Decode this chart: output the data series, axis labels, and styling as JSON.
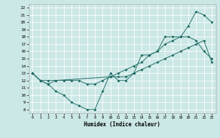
{
  "title": "",
  "xlabel": "Humidex (Indice chaleur)",
  "bg_color": "#cce8e6",
  "line_color": "#1e6b65",
  "grid_color": "#ffffff",
  "xlim": [
    -0.5,
    23.5
  ],
  "ylim": [
    7.5,
    22.5
  ],
  "xticks": [
    0,
    1,
    2,
    3,
    4,
    5,
    6,
    7,
    8,
    9,
    10,
    11,
    12,
    13,
    14,
    15,
    16,
    17,
    18,
    19,
    20,
    21,
    22,
    23
  ],
  "yticks": [
    8,
    9,
    10,
    11,
    12,
    13,
    14,
    15,
    16,
    17,
    18,
    19,
    20,
    21,
    22
  ],
  "line1_x": [
    0,
    1,
    2,
    3,
    4,
    5,
    6,
    7,
    8,
    9,
    10,
    11,
    12,
    13,
    14,
    15,
    16,
    17,
    18,
    19,
    20,
    21,
    22,
    23
  ],
  "line1_y": [
    13,
    12,
    11.5,
    10.5,
    10,
    9,
    8.5,
    8,
    8,
    10.5,
    13,
    12,
    12,
    13,
    15.5,
    15.5,
    16,
    18,
    18,
    18,
    18,
    17.5,
    16,
    15
  ],
  "line2_x": [
    0,
    1,
    2,
    3,
    10,
    11,
    12,
    13,
    14,
    15,
    16,
    17,
    18,
    19,
    20,
    21,
    22,
    23
  ],
  "line2_y": [
    13,
    12,
    12,
    12,
    12.5,
    13,
    13.5,
    14,
    14.5,
    15.5,
    16,
    17,
    17.5,
    18,
    19.5,
    21.5,
    21,
    20
  ],
  "line3_x": [
    0,
    1,
    2,
    3,
    4,
    5,
    6,
    7,
    8,
    9,
    10,
    11,
    12,
    13,
    14,
    15,
    16,
    17,
    18,
    19,
    20,
    21,
    22,
    23
  ],
  "line3_y": [
    13,
    12,
    11.5,
    12,
    12,
    12,
    12,
    11.5,
    11.5,
    12,
    12.5,
    12.5,
    12.5,
    13,
    13.5,
    14,
    14.5,
    15,
    15.5,
    16,
    16.5,
    17,
    17.5,
    14.5
  ]
}
